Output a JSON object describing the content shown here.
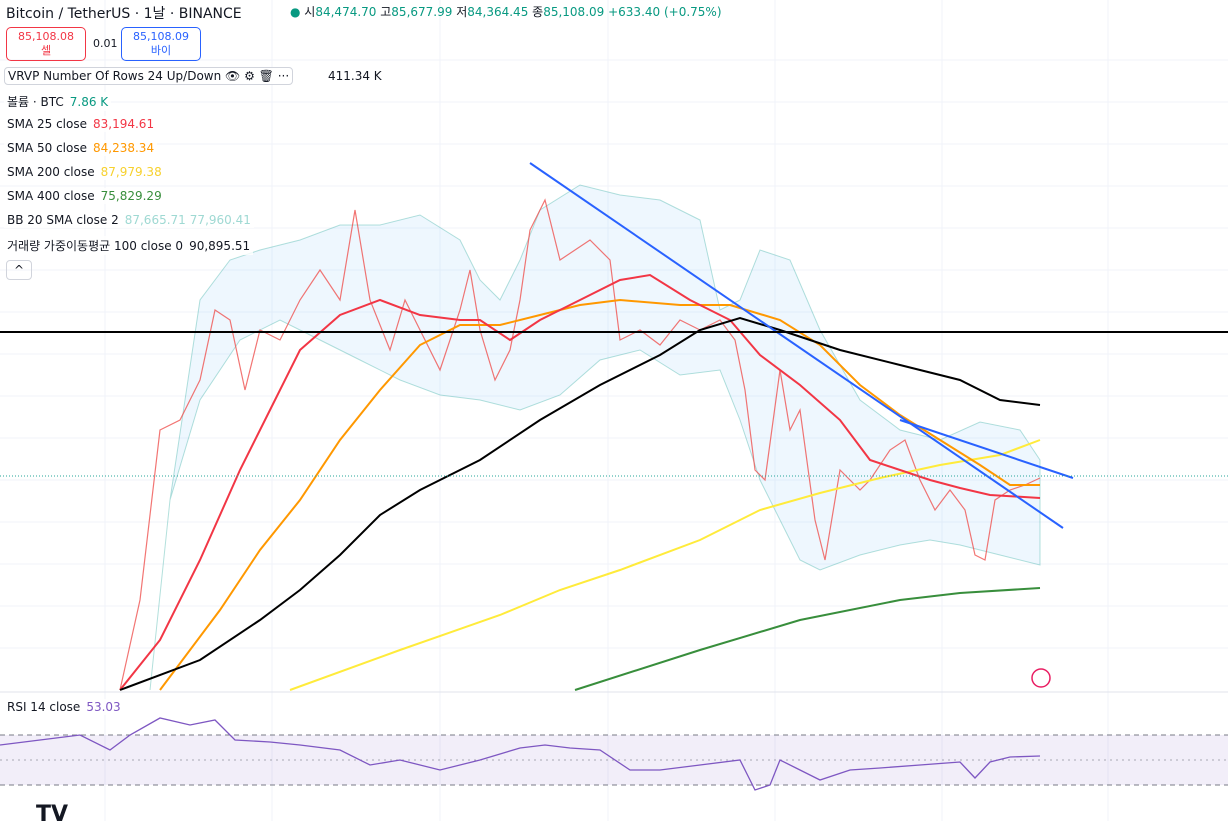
{
  "header": {
    "symbol": "Bitcoin / TetherUS · 1날 · BINANCE",
    "ohlc": [
      {
        "label": "시",
        "value": "84,474.70"
      },
      {
        "label": "고",
        "value": "85,677.99"
      },
      {
        "label": "저",
        "value": "84,364.45"
      },
      {
        "label": "종",
        "value": "85,108.09"
      }
    ],
    "change": "+633.40 (+0.75%)"
  },
  "trade": {
    "sell_price": "85,108.08",
    "sell_label": "셀",
    "spread": "0.01",
    "buy_price": "85,108.09",
    "buy_label": "바이"
  },
  "indicators": {
    "vrvp": {
      "name": "VRVP Number Of Rows 24 Up/Down",
      "value": "411.34 K"
    },
    "volume": {
      "name": "볼륨 · BTC",
      "value": "7.86 K"
    },
    "sma25": {
      "name": "SMA 25 close",
      "value": "83,194.61"
    },
    "sma50": {
      "name": "SMA 50 close",
      "value": "84,238.34"
    },
    "sma200": {
      "name": "SMA 200 close",
      "value": "87,979.38"
    },
    "sma400": {
      "name": "SMA 400 close",
      "value": "75,829.29"
    },
    "bb": {
      "name": "BB 20 SMA close 2",
      "upper": "87,665.71",
      "lower": "77,960.41"
    },
    "vwma": {
      "name": "거래량 가중이동평균 100 close 0",
      "value": "90,895.51"
    },
    "rsi": {
      "name": "RSI 14 close",
      "value": "53.03"
    }
  }
}
